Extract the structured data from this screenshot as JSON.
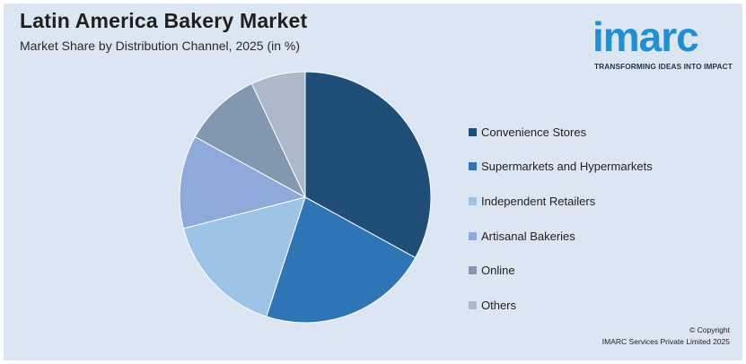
{
  "title": "Latin America Bakery Market",
  "subtitle": "Market Share by Distribution Channel, 2025 (in %)",
  "logo": {
    "word": "imarc",
    "tagline": "TRANSFORMING IDEAS INTO IMPACT"
  },
  "copyright": {
    "line1": "© Copyright",
    "line2": "IMARC Services Private Limited 2025"
  },
  "chart_data": {
    "type": "pie",
    "categories": [
      "Convenience Stores",
      "Supermarkets and Hypermarkets",
      "Independent Retailers",
      "Artisanal Bakeries",
      "Online",
      "Others"
    ],
    "values": [
      33,
      22,
      16,
      12,
      10,
      7
    ],
    "colors": [
      "#1f4e79",
      "#2e75b6",
      "#9dc3e6",
      "#8eaadb",
      "#8497b0",
      "#adb9ca"
    ],
    "legend_position": "right",
    "start_angle_deg": 0,
    "direction": "clockwise"
  }
}
